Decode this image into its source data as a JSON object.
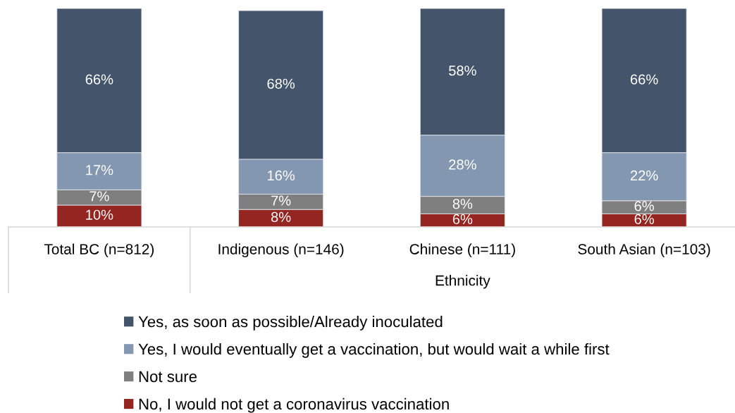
{
  "chart_data": {
    "type": "bar",
    "stacked": true,
    "categories": [
      "Total BC (n=812)",
      "Indigenous (n=146)",
      "Chinese (n=111)",
      "South Asian (n=103)"
    ],
    "series": [
      {
        "name": "No, I would not get a coronavirus vaccination",
        "color": "#952520",
        "values": [
          10,
          8,
          6,
          6
        ],
        "value_labels": [
          "10%",
          "8%",
          "6%",
          "6%"
        ]
      },
      {
        "name": "Not sure",
        "color": "#7f7f7f",
        "values": [
          7,
          7,
          8,
          6
        ],
        "value_labels": [
          "7%",
          "7%",
          "8%",
          "6%"
        ]
      },
      {
        "name": "Yes, I would eventually get a vaccination, but would wait a while first",
        "color": "#8497b0",
        "values": [
          17,
          16,
          28,
          22
        ],
        "value_labels": [
          "17%",
          "16%",
          "28%",
          "22%"
        ]
      },
      {
        "name": "Yes, as soon as possible/Already inoculated",
        "color": "#44546a",
        "values": [
          66,
          68,
          58,
          66
        ],
        "value_labels": [
          "66%",
          "68%",
          "58%",
          "66%"
        ]
      }
    ],
    "ylim": [
      0,
      100
    ],
    "tick_labels": "x",
    "legend": "bottom",
    "annotations": [
      "Ethnicity"
    ]
  }
}
